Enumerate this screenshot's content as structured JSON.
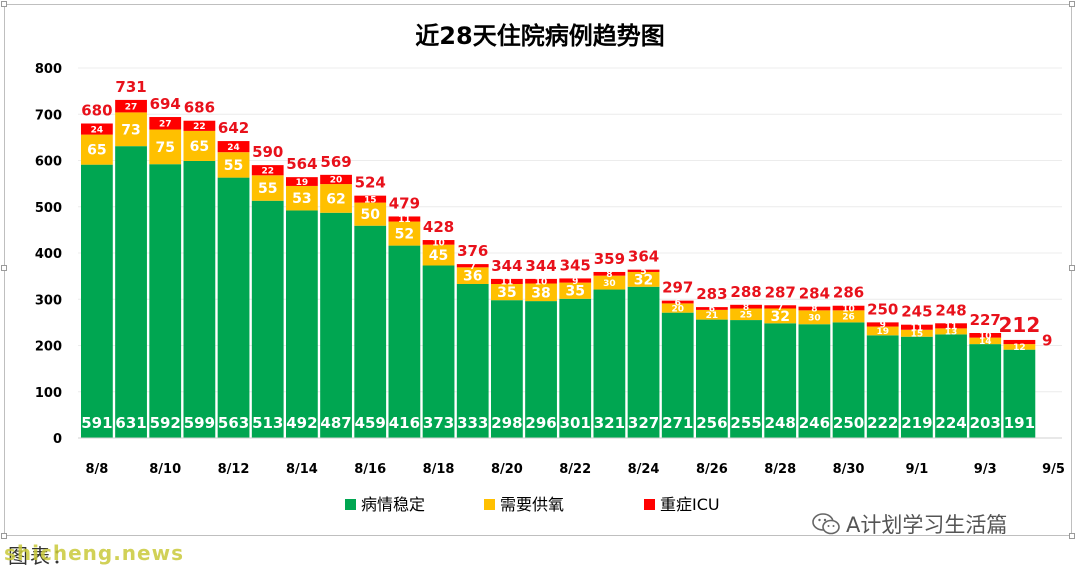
{
  "chart_data": {
    "type": "bar",
    "stacked": true,
    "title": "近28天住院病例趋势图",
    "categories": [
      "8/8",
      "8/9",
      "8/10",
      "8/11",
      "8/12",
      "8/13",
      "8/14",
      "8/15",
      "8/16",
      "8/17",
      "8/18",
      "8/19",
      "8/20",
      "8/21",
      "8/22",
      "8/23",
      "8/24",
      "8/25",
      "8/26",
      "8/27",
      "8/28",
      "8/29",
      "8/30",
      "8/31",
      "9/1",
      "9/2",
      "9/3",
      "9/4",
      "9/5"
    ],
    "x_tick_labels": [
      "8/8",
      "8/10",
      "8/12",
      "8/14",
      "8/16",
      "8/18",
      "8/20",
      "8/22",
      "8/24",
      "8/26",
      "8/28",
      "8/30",
      "9/1",
      "9/3",
      "9/5"
    ],
    "series": [
      {
        "name": "病情稳定",
        "color": "#00a651",
        "values": [
          591,
          631,
          592,
          599,
          563,
          513,
          492,
          487,
          459,
          416,
          373,
          333,
          298,
          296,
          301,
          321,
          327,
          271,
          256,
          255,
          248,
          246,
          250,
          222,
          219,
          224,
          203,
          191,
          null
        ],
        "labels": [
          "591",
          "631",
          "592",
          "599",
          "563",
          "513",
          "492",
          "487",
          "459",
          "416",
          "373",
          "333",
          "298",
          "296",
          "301",
          "321",
          "327",
          "271",
          "256",
          "255",
          "248",
          "246",
          "250",
          "222",
          "219",
          "224",
          "203",
          "191",
          ""
        ]
      },
      {
        "name": "需要供氧",
        "color": "#ffc000",
        "values": [
          65,
          73,
          75,
          65,
          55,
          55,
          53,
          62,
          50,
          52,
          45,
          36,
          35,
          38,
          35,
          30,
          32,
          20,
          21,
          25,
          32,
          30,
          26,
          19,
          15,
          13,
          14,
          12,
          null
        ],
        "labels": [
          "65",
          "73",
          "75",
          "65",
          "55",
          "55",
          "53",
          "62",
          "50",
          "52",
          "45",
          "36",
          "35",
          "38",
          "35",
          "30",
          "32",
          "20",
          "21",
          "25",
          "32",
          "30",
          "26",
          "19",
          "15",
          "13",
          "14",
          "12",
          ""
        ]
      },
      {
        "name": "重症ICU",
        "color": "#ff0000",
        "values": [
          24,
          27,
          27,
          22,
          24,
          22,
          19,
          20,
          15,
          11,
          10,
          7,
          11,
          10,
          9,
          8,
          5,
          6,
          6,
          8,
          7,
          8,
          10,
          9,
          11,
          11,
          10,
          9,
          null
        ],
        "labels": [
          "24",
          "27",
          "27",
          "22",
          "24",
          "22",
          "19",
          "20",
          "15",
          "11",
          "10",
          "7",
          "11",
          "10",
          "9",
          "8",
          "5",
          "6",
          "6",
          "8",
          "7",
          "8",
          "10",
          "9",
          "11",
          "11",
          "10",
          "",
          ""
        ]
      }
    ],
    "totals": [
      "680",
      "731",
      "694",
      "686",
      "642",
      "590",
      "564",
      "569",
      "524",
      "479",
      "428",
      "376",
      "344",
      "344",
      "345",
      "359",
      "364",
      "297",
      "283",
      "288",
      "287",
      "284",
      "286",
      "250",
      "245",
      "248",
      "227",
      "212",
      ""
    ],
    "side_label": "9",
    "ylim": [
      0,
      800
    ],
    "yticks": [
      "0",
      "100",
      "200",
      "300",
      "400",
      "500",
      "600",
      "700",
      "800"
    ],
    "grid": true,
    "legend_position": "bottom-center",
    "colors": {
      "total_label": "#e8111b",
      "inner_label": "#ffffff",
      "axis_text": "#000000",
      "grid": "#ececec"
    }
  },
  "footer": {
    "caption": "图表：",
    "watermark": "shicheng.news",
    "wechat_credit": "A计划学习生活篇"
  }
}
